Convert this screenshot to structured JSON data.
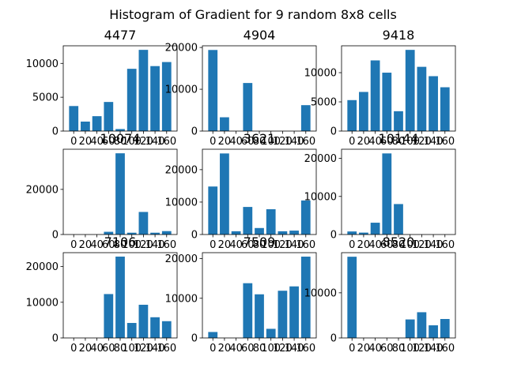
{
  "chart_data": {
    "type": "bar",
    "title": "Histogram of Gradient for 9 random 8x8 cells",
    "bar_color": "#1f77b4",
    "x": [
      0,
      20,
      40,
      60,
      80,
      100,
      120,
      140,
      160
    ],
    "x_tick_labels": [
      "0",
      "20",
      "40",
      "60",
      "80",
      "100",
      "120",
      "140",
      "160"
    ],
    "grid": false,
    "panels": [
      {
        "title": "4477",
        "values": [
          3700,
          1400,
          2200,
          4300,
          300,
          9200,
          12000,
          9600,
          10200
        ],
        "ylim": [
          0,
          12600
        ],
        "yticks": [
          0,
          5000,
          10000
        ]
      },
      {
        "title": "4904",
        "values": [
          19400,
          3300,
          0,
          11500,
          0,
          0,
          0,
          0,
          6200
        ],
        "ylim": [
          0,
          20400
        ],
        "yticks": [
          0,
          10000,
          20000
        ]
      },
      {
        "title": "9418",
        "values": [
          5300,
          6700,
          12100,
          10000,
          3400,
          13900,
          11000,
          9400,
          7500
        ],
        "ylim": [
          0,
          14600
        ],
        "yticks": [
          0,
          5000,
          10000
        ]
      },
      {
        "title": "10074",
        "values": [
          0,
          0,
          0,
          1200,
          36000,
          800,
          10000,
          800,
          1500
        ],
        "ylim": [
          0,
          37800
        ],
        "yticks": [
          0,
          20000
        ]
      },
      {
        "title": "3621",
        "values": [
          14800,
          25000,
          1000,
          8500,
          2000,
          7800,
          1000,
          1200,
          10500
        ],
        "ylim": [
          0,
          26300
        ],
        "yticks": [
          0,
          10000,
          20000
        ]
      },
      {
        "title": "10144",
        "values": [
          800,
          500,
          3100,
          21300,
          8000,
          0,
          0,
          0,
          0
        ],
        "ylim": [
          0,
          22400
        ],
        "yticks": [
          0,
          10000,
          20000
        ]
      },
      {
        "title": "7106",
        "values": [
          0,
          0,
          0,
          12300,
          22800,
          4200,
          9300,
          5800,
          4700
        ],
        "ylim": [
          0,
          23900
        ],
        "yticks": [
          0,
          10000,
          20000
        ]
      },
      {
        "title": "7509",
        "values": [
          1500,
          0,
          0,
          13800,
          11000,
          2300,
          11900,
          13000,
          20500
        ],
        "ylim": [
          0,
          21500
        ],
        "yticks": [
          0,
          10000,
          20000
        ]
      },
      {
        "title": "8520",
        "values": [
          18000,
          0,
          0,
          0,
          0,
          4100,
          5700,
          2800,
          4200
        ],
        "ylim": [
          0,
          18900
        ],
        "yticks": [
          0,
          10000
        ]
      }
    ]
  }
}
